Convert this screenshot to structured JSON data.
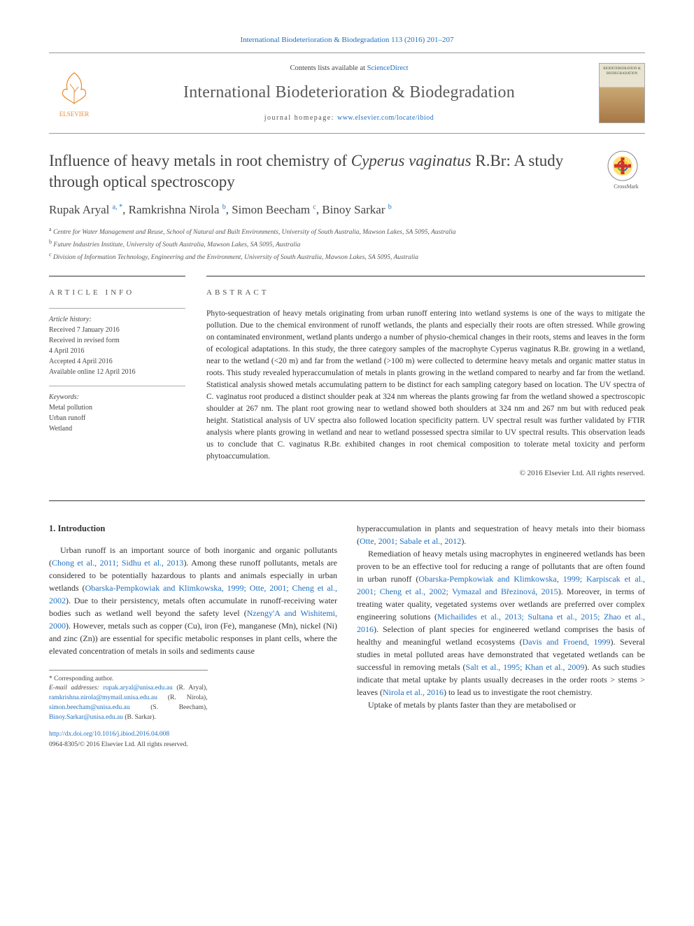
{
  "journal_ref": "International Biodeterioration & Biodegradation 113 (2016) 201–207",
  "header": {
    "contents_prefix": "Contents lists available at ",
    "contents_link": "ScienceDirect",
    "journal_name": "International Biodeterioration & Biodegradation",
    "homepage_prefix": "journal homepage: ",
    "homepage_url": "www.elsevier.com/locate/ibiod",
    "publisher_logo_text": "ELSEVIER",
    "cover_text": "BIODETERIORATION & BIODEGRADATION"
  },
  "crossmark_label": "CrossMark",
  "title_pre": "Influence of heavy metals in root chemistry of ",
  "title_em": "Cyperus vaginatus",
  "title_post": " R.Br: A study through optical spectroscopy",
  "authors": [
    {
      "name": "Rupak Aryal",
      "sup": "a, *"
    },
    {
      "name": "Ramkrishna Nirola",
      "sup": "b"
    },
    {
      "name": "Simon Beecham",
      "sup": "c"
    },
    {
      "name": "Binoy Sarkar",
      "sup": "b"
    }
  ],
  "affiliations": [
    {
      "sup": "a",
      "text": "Centre for Water Management and Reuse, School of Natural and Built Environments, University of South Australia, Mawson Lakes, SA 5095, Australia"
    },
    {
      "sup": "b",
      "text": "Future Industries Institute, University of South Australia, Mawson Lakes, SA 5095, Australia"
    },
    {
      "sup": "c",
      "text": "Division of Information Technology, Engineering and the Environment, University of South Australia, Mawson Lakes, SA 5095, Australia"
    }
  ],
  "article_info": {
    "heading": "ARTICLE INFO",
    "history_label": "Article history:",
    "history": [
      "Received 7 January 2016",
      "Received in revised form",
      "4 April 2016",
      "Accepted 4 April 2016",
      "Available online 12 April 2016"
    ],
    "keywords_label": "Keywords:",
    "keywords": [
      "Metal pollution",
      "Urban runoff",
      "Wetland"
    ]
  },
  "abstract": {
    "heading": "ABSTRACT",
    "text": "Phyto-sequestration of heavy metals originating from urban runoff entering into wetland systems is one of the ways to mitigate the pollution. Due to the chemical environment of runoff wetlands, the plants and especially their roots are often stressed. While growing on contaminated environment, wetland plants undergo a number of physio-chemical changes in their roots, stems and leaves in the form of ecological adaptations. In this study, the three category samples of the macrophyte Cyperus vaginatus R.Br. growing in a wetland, near to the wetland (<20 m) and far from the wetland (>100 m) were collected to determine heavy metals and organic matter status in roots. This study revealed hyperaccumulation of metals in plants growing in the wetland compared to nearby and far from the wetland. Statistical analysis showed metals accumulating pattern to be distinct for each sampling category based on location. The UV spectra of C. vaginatus root produced a distinct shoulder peak at 324 nm whereas the plants growing far from the wetland showed a spectroscopic shoulder at 267 nm. The plant root growing near to wetland showed both shoulders at 324 nm and 267 nm but with reduced peak height. Statistical analysis of UV spectra also followed location specificity pattern. UV spectral result was further validated by FTIR analysis where plants growing in wetland and near to wetland possessed spectra similar to UV spectral results. This observation leads us to conclude that C. vaginatus R.Br. exhibited changes in root chemical composition to tolerate metal toxicity and perform phytoaccumulation.",
    "copyright": "© 2016 Elsevier Ltd. All rights reserved."
  },
  "body": {
    "section_heading": "1. Introduction",
    "col1": {
      "p1a": "Urban runoff is an important source of both inorganic and organic pollutants (",
      "p1cite1": "Chong et al., 2011; Sidhu et al., 2013",
      "p1b": "). Among these runoff pollutants, metals are considered to be potentially hazardous to plants and animals especially in urban wetlands (",
      "p1cite2": "Obarska-Pempkowiak and Klimkowska, 1999; Otte, 2001; Cheng et al., 2002",
      "p1c": "). Due to their persistency, metals often accumulate in runoff-receiving water bodies such as wetland well beyond the safety level (",
      "p1cite3": "Nzengy'A and Wishitemi, 2000",
      "p1d": "). However, metals such as copper (Cu), iron (Fe), manganese (Mn), nickel (Ni) and zinc (Zn)) are essential for specific metabolic responses in plant cells, where the elevated concentration of metals in soils and sediments cause"
    },
    "col2": {
      "p1a": "hyperaccumulation in plants and sequestration of heavy metals into their biomass (",
      "p1cite1": "Otte, 2001; Sabale et al., 2012",
      "p1b": ").",
      "p2a": "Remediation of heavy metals using macrophytes in engineered wetlands has been proven to be an effective tool for reducing a range of pollutants that are often found in urban runoff (",
      "p2cite1": "Obarska-Pempkowiak and Klimkowska, 1999; Karpiscak et al., 2001; Cheng et al., 2002; Vymazal and Březinová, 2015",
      "p2b": "). Moreover, in terms of treating water quality, vegetated systems over wetlands are preferred over complex engineering solutions (",
      "p2cite2": "Michailides et al., 2013; Sultana et al., 2015; Zhao et al., 2016",
      "p2c": "). Selection of plant species for engineered wetland comprises the basis of healthy and meaningful wetland ecosystems (",
      "p2cite3": "Davis and Froend, 1999",
      "p2d": "). Several studies in metal polluted areas have demonstrated that vegetated wetlands can be successful in removing metals (",
      "p2cite4": "Salt et al., 1995; Khan et al., 2009",
      "p2e": "). As such studies indicate that metal uptake by plants usually decreases in the order roots > stems > leaves (",
      "p2cite5": "Nirola et al., 2016",
      "p2f": ") to lead us to investigate the root chemistry.",
      "p3": "Uptake of metals by plants faster than they are metabolised or"
    }
  },
  "footnotes": {
    "corr": "* Corresponding author.",
    "emails_label": "E-mail addresses: ",
    "emails": [
      {
        "addr": "rupak.aryal@unisa.edu.au",
        "who": "(R. Aryal)"
      },
      {
        "addr": "ramkrishna.nirola@mymail.unisa.edu.au",
        "who": "(R. Nirola)"
      },
      {
        "addr": "simon.beecham@unisa.edu.au",
        "who": "(S. Beecham)"
      },
      {
        "addr": "Binoy.Sarkar@unisa.edu.au",
        "who": "(B. Sarkar)"
      }
    ]
  },
  "doi": {
    "url": "http://dx.doi.org/10.1016/j.ibiod.2016.04.008",
    "issn_line": "0964-8305/© 2016 Elsevier Ltd. All rights reserved."
  },
  "colors": {
    "link": "#2070c0",
    "text": "#333333",
    "heading_gray": "#555555",
    "elsevier_orange": "#ea8b2b"
  }
}
